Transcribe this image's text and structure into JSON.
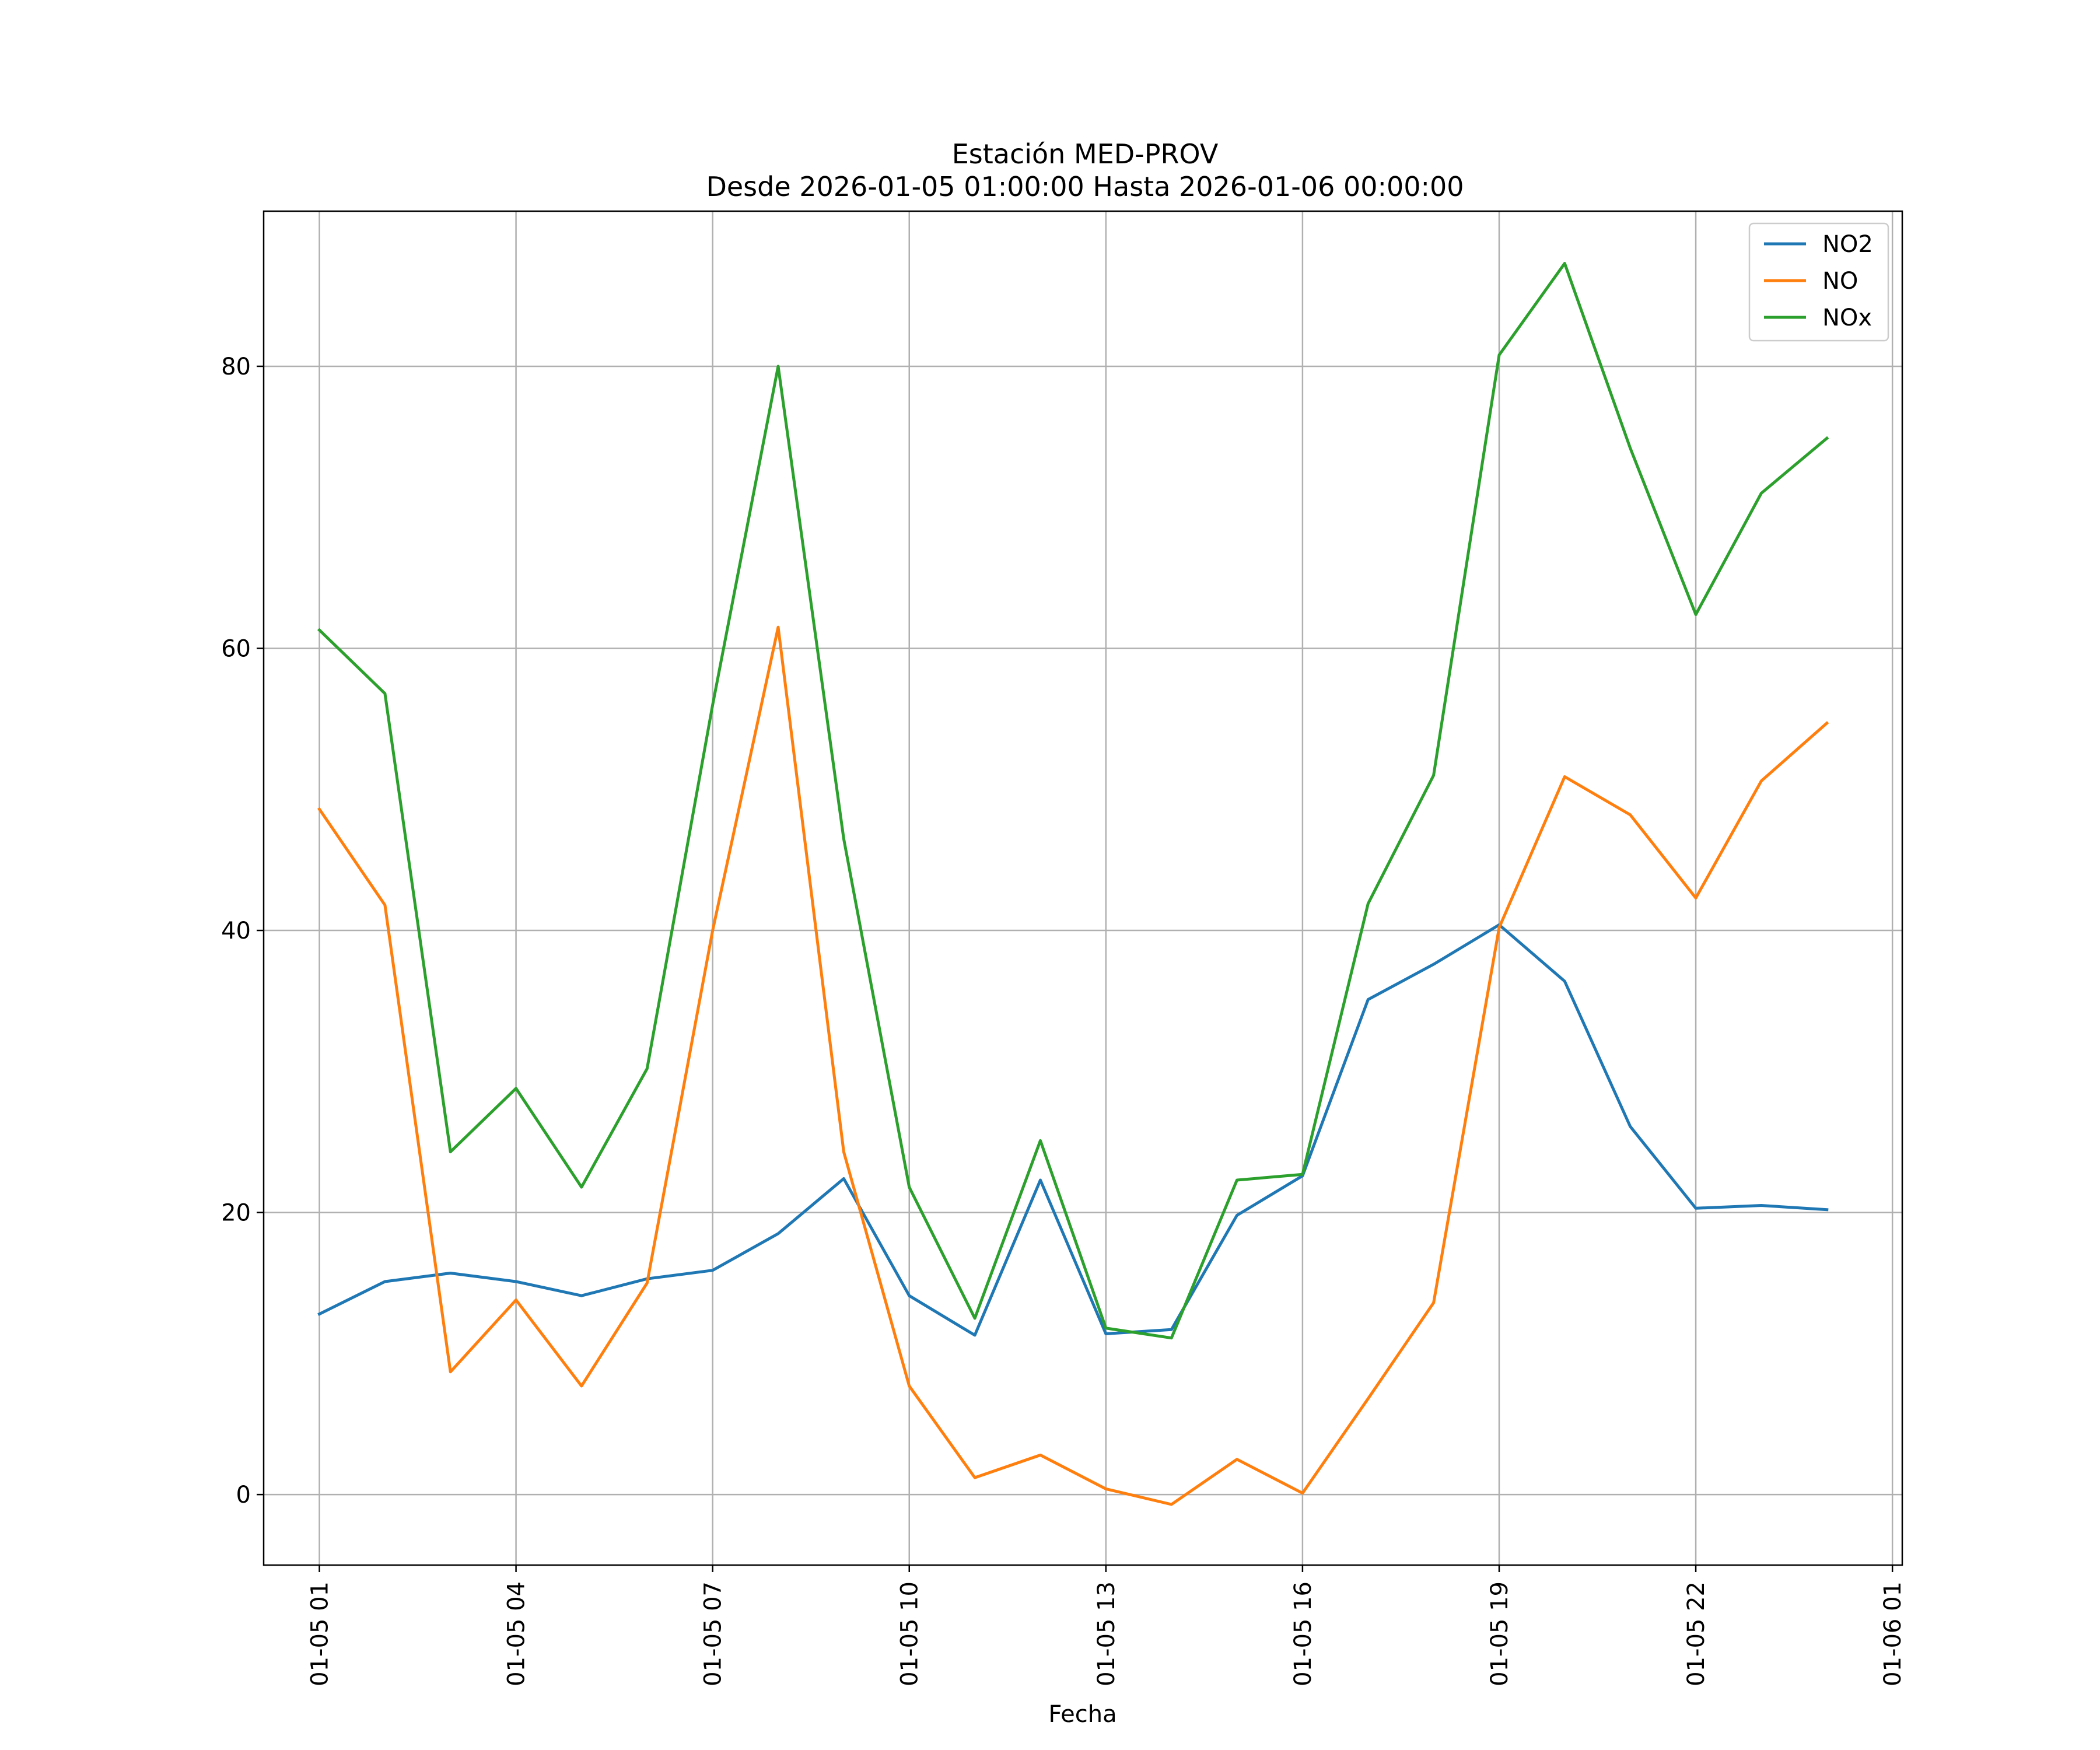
{
  "chart_data": {
    "type": "line",
    "title": "Estación MED-PROV",
    "subtitle": "Desde 2026-01-05 01:00:00 Hasta 2026-01-06 00:00:00",
    "xlabel": "Fecha",
    "ylabel": "",
    "x": [
      "2026-01-05 01:00",
      "2026-01-05 02:00",
      "2026-01-05 03:00",
      "2026-01-05 04:00",
      "2026-01-05 05:00",
      "2026-01-05 06:00",
      "2026-01-05 07:00",
      "2026-01-05 08:00",
      "2026-01-05 09:00",
      "2026-01-05 10:00",
      "2026-01-05 11:00",
      "2026-01-05 12:00",
      "2026-01-05 13:00",
      "2026-01-05 14:00",
      "2026-01-05 15:00",
      "2026-01-05 16:00",
      "2026-01-05 17:00",
      "2026-01-05 18:00",
      "2026-01-05 19:00",
      "2026-01-05 20:00",
      "2026-01-05 21:00",
      "2026-01-05 22:00",
      "2026-01-05 23:00",
      "2026-01-06 00:00"
    ],
    "xlim": [
      "2026-01-05 00:09",
      "2026-01-06 01:09"
    ],
    "ylim": [
      -5,
      91
    ],
    "x_ticks": [
      "2026-01-05 01:00",
      "2026-01-05 04:00",
      "2026-01-05 07:00",
      "2026-01-05 10:00",
      "2026-01-05 13:00",
      "2026-01-05 16:00",
      "2026-01-05 19:00",
      "2026-01-05 22:00",
      "2026-01-06 01:00"
    ],
    "x_tick_labels": [
      "01-05 01",
      "01-05 04",
      "01-05 07",
      "01-05 10",
      "01-05 13",
      "01-05 16",
      "01-05 19",
      "01-05 22",
      "01-06 01"
    ],
    "y_ticks": [
      0,
      20,
      40,
      60,
      80
    ],
    "y_tick_labels": [
      "0",
      "20",
      "40",
      "60",
      "80"
    ],
    "grid": true,
    "legend_position": "top-right",
    "series": [
      {
        "name": "NO2",
        "color": "#1f77b4",
        "values": [
          12.8,
          15.1,
          15.7,
          15.1,
          14.1,
          15.3,
          15.9,
          18.5,
          22.4,
          14.1,
          11.3,
          22.3,
          11.4,
          11.7,
          19.8,
          22.6,
          35.1,
          37.6,
          40.4,
          36.4,
          26.1,
          20.3,
          20.5,
          20.2
        ]
      },
      {
        "name": "NO",
        "color": "#ff7f0e",
        "values": [
          48.6,
          41.8,
          8.7,
          13.8,
          7.7,
          15.0,
          40.0,
          61.5,
          24.3,
          7.7,
          1.2,
          2.8,
          0.4,
          -0.7,
          2.5,
          0.1,
          6.8,
          13.6,
          40.2,
          50.9,
          48.2,
          42.3,
          50.6,
          54.7
        ]
      },
      {
        "name": "NOx",
        "color": "#2ca02c",
        "values": [
          61.3,
          56.8,
          24.3,
          28.8,
          21.8,
          30.2,
          56.0,
          80.0,
          46.5,
          21.8,
          12.5,
          25.1,
          11.8,
          11.1,
          22.3,
          22.7,
          41.9,
          51.0,
          80.8,
          87.3,
          74.2,
          62.4,
          71.0,
          74.9
        ]
      }
    ]
  }
}
